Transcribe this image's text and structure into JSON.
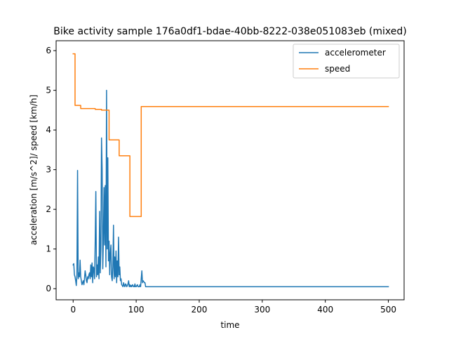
{
  "chart_data": {
    "type": "line",
    "title": "Bike activity sample 176a0df1-bdae-40bb-8222-038e051083eb (mixed)",
    "xlabel": "time",
    "ylabel": "acceleration [m/s^2]/ speed [km/h]",
    "xlim": [
      -27,
      525
    ],
    "ylim": [
      -0.28,
      6.25
    ],
    "xticks": [
      0,
      100,
      200,
      300,
      400,
      500
    ],
    "yticks": [
      0,
      1,
      2,
      3,
      4,
      5,
      6
    ],
    "grid": false,
    "legend_position": "top-right",
    "series": [
      {
        "name": "accelerometer",
        "color": "#1f77b4",
        "x": [
          0,
          1,
          2,
          3,
          4,
          5,
          6,
          7,
          8,
          9,
          10,
          11,
          12,
          13,
          14,
          15,
          16,
          17,
          18,
          19,
          20,
          21,
          22,
          23,
          24,
          25,
          26,
          27,
          28,
          29,
          30,
          31,
          32,
          33,
          34,
          35,
          36,
          37,
          38,
          39,
          40,
          41,
          42,
          43,
          44,
          45,
          46,
          47,
          48,
          49,
          50,
          51,
          52,
          53,
          54,
          55,
          56,
          57,
          58,
          59,
          60,
          61,
          62,
          63,
          64,
          65,
          66,
          67,
          68,
          69,
          70,
          71,
          72,
          73,
          74,
          75,
          76,
          77,
          78,
          79,
          80,
          81,
          82,
          83,
          84,
          85,
          86,
          87,
          88,
          89,
          90,
          91,
          92,
          93,
          94,
          95,
          96,
          97,
          98,
          99,
          100,
          101,
          102,
          103,
          104,
          105,
          106,
          107,
          108,
          109,
          110,
          111,
          112,
          113,
          114,
          115,
          500
        ],
        "values": [
          0.6,
          0.63,
          0.35,
          0.3,
          0.2,
          0.08,
          0.35,
          2.98,
          0.25,
          0.4,
          0.3,
          0.72,
          0.3,
          0.2,
          0.1,
          0.15,
          0.2,
          0.1,
          0.25,
          0.45,
          0.35,
          0.2,
          0.15,
          0.3,
          0.25,
          0.35,
          0.4,
          0.25,
          0.6,
          0.3,
          0.65,
          0.15,
          0.55,
          0.5,
          0.25,
          1.2,
          2.45,
          0.3,
          0.6,
          0.35,
          0.8,
          0.25,
          1.95,
          0.4,
          1.0,
          3.8,
          3.0,
          0.5,
          1.25,
          2.55,
          1.1,
          2.6,
          0.55,
          5.0,
          1.0,
          3.3,
          0.7,
          1.2,
          0.35,
          0.9,
          1.1,
          0.3,
          0.2,
          0.55,
          1.6,
          0.25,
          0.8,
          0.3,
          0.95,
          0.15,
          0.7,
          0.3,
          1.3,
          0.35,
          0.55,
          0.2,
          0.25,
          0.1,
          0.08,
          0.05,
          0.15,
          0.08,
          0.05,
          0.12,
          0.1,
          0.05,
          0.08,
          0.12,
          0.2,
          0.05,
          0.1,
          0.05,
          0.08,
          0.05,
          0.1,
          0.08,
          0.05,
          0.05,
          0.12,
          0.05,
          0.05,
          0.08,
          0.1,
          0.05,
          0.05,
          0.05,
          0.1,
          0.05,
          0.25,
          0.45,
          0.15,
          0.2,
          0.18,
          0.15,
          0.15,
          0.05,
          0.05
        ]
      },
      {
        "name": "speed",
        "color": "#ff7f0e",
        "x": [
          0,
          3,
          3,
          12,
          12,
          35,
          35,
          45,
          45,
          57,
          57,
          73,
          73,
          90,
          90,
          108,
          108,
          500
        ],
        "values": [
          5.92,
          5.92,
          4.62,
          4.62,
          4.54,
          4.54,
          4.52,
          4.52,
          4.5,
          4.5,
          3.75,
          3.75,
          3.35,
          3.35,
          1.82,
          1.82,
          4.59,
          4.59
        ],
        "step": true
      }
    ]
  }
}
